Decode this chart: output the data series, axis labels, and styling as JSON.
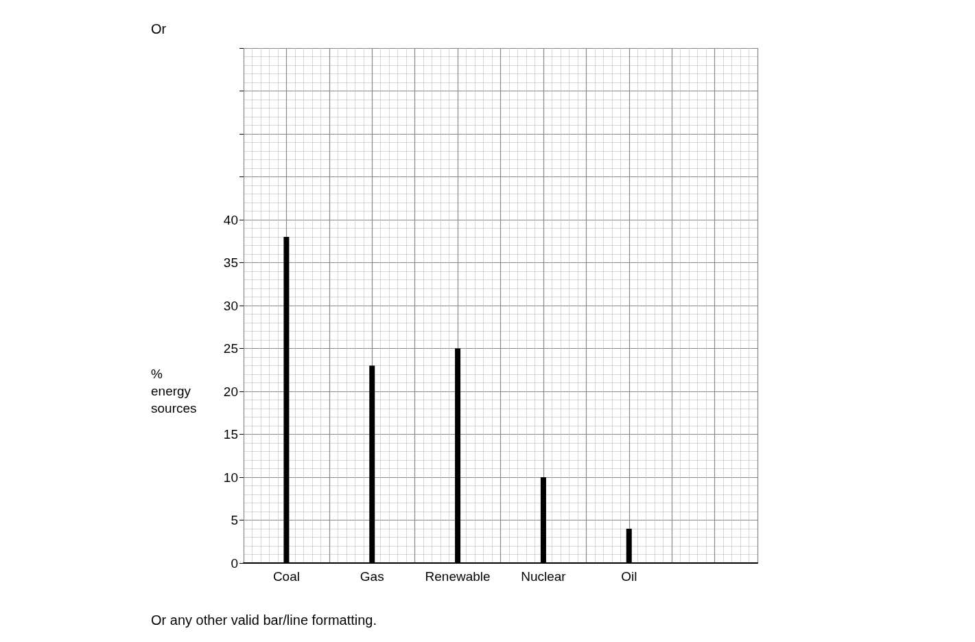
{
  "chart_data": {
    "type": "bar",
    "ylabel": "% energy sources",
    "categories": [
      "Coal",
      "Gas",
      "Renewable",
      "Nuclear",
      "Oil",
      null
    ],
    "values": [
      38,
      23,
      25,
      10,
      4,
      null
    ],
    "color": "#000000",
    "ylim": [
      0,
      60
    ],
    "yticks": [
      0,
      5,
      10,
      15,
      20,
      25,
      30,
      35,
      40
    ],
    "grid": true,
    "annotations": [
      "Or",
      "Or any other valid bar/line formatting."
    ]
  }
}
